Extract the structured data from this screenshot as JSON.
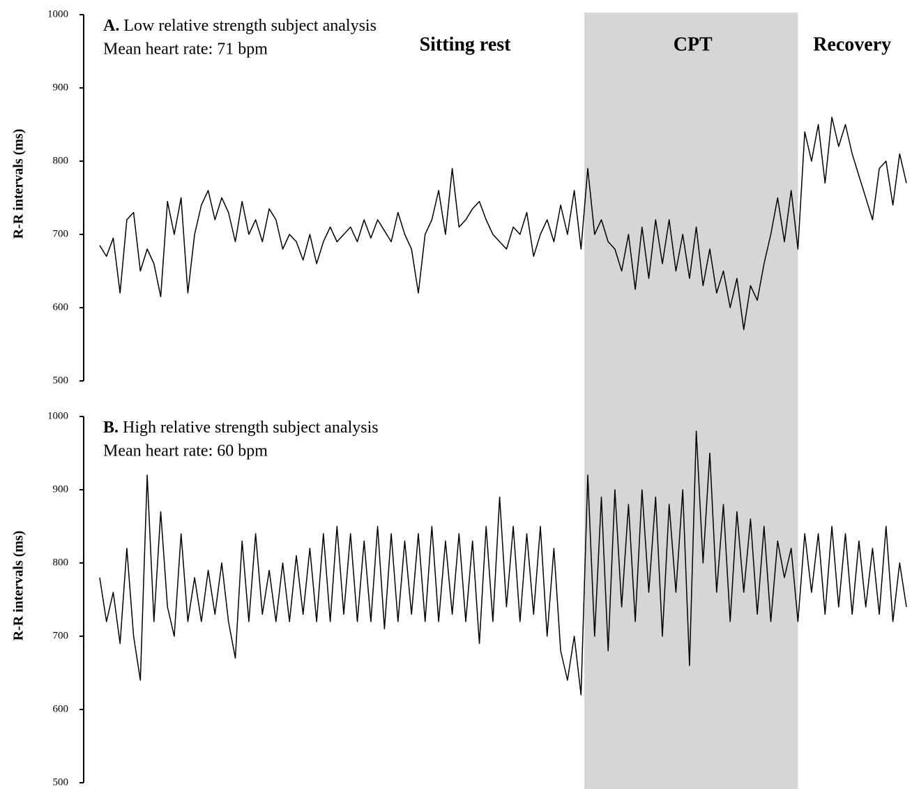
{
  "phases": [
    {
      "label": "Sitting rest",
      "start": 0,
      "end": 72,
      "shaded": false
    },
    {
      "label": "CPT",
      "start": 72,
      "end": 103,
      "shaded": true
    },
    {
      "label": "Recovery",
      "start": 103,
      "end": 119,
      "shaded": false
    }
  ],
  "chart_data": [
    {
      "type": "line",
      "panel_label": "A.",
      "title": "Low relative strength subject analysis",
      "subtitle": "Mean heart rate: 71 bpm",
      "ylabel": "R-R intervals (ms)",
      "ylim": [
        500,
        1000
      ],
      "yticks": [
        500,
        600,
        700,
        800,
        900,
        1000
      ],
      "color": "#000000",
      "grid": false,
      "values": [
        685,
        670,
        695,
        620,
        720,
        730,
        650,
        680,
        660,
        615,
        745,
        700,
        750,
        620,
        700,
        740,
        760,
        720,
        750,
        730,
        690,
        745,
        700,
        720,
        690,
        735,
        720,
        680,
        700,
        690,
        665,
        700,
        660,
        690,
        710,
        690,
        700,
        710,
        690,
        720,
        695,
        720,
        705,
        690,
        730,
        700,
        680,
        620,
        700,
        720,
        760,
        700,
        790,
        710,
        720,
        735,
        745,
        720,
        700,
        690,
        680,
        710,
        700,
        730,
        670,
        700,
        720,
        690,
        740,
        700,
        760,
        680,
        790,
        700,
        720,
        690,
        680,
        650,
        700,
        625,
        710,
        640,
        720,
        660,
        720,
        650,
        700,
        640,
        710,
        630,
        680,
        620,
        650,
        600,
        640,
        570,
        630,
        610,
        660,
        700,
        750,
        690,
        760,
        680,
        840,
        800,
        850,
        770,
        860,
        820,
        850,
        810,
        780,
        750,
        720,
        790,
        800,
        740,
        810,
        770
      ]
    },
    {
      "type": "line",
      "panel_label": "B.",
      "title": "High relative strength subject analysis",
      "subtitle": "Mean heart rate: 60 bpm",
      "ylabel": "R-R intervals (ms)",
      "ylim": [
        500,
        1000
      ],
      "yticks": [
        500,
        600,
        700,
        800,
        900,
        1000
      ],
      "color": "#000000",
      "grid": false,
      "values": [
        780,
        720,
        760,
        690,
        820,
        700,
        640,
        920,
        720,
        870,
        740,
        700,
        840,
        720,
        780,
        720,
        790,
        730,
        800,
        720,
        670,
        830,
        720,
        840,
        730,
        790,
        720,
        800,
        720,
        810,
        730,
        820,
        720,
        840,
        720,
        850,
        730,
        840,
        720,
        830,
        720,
        850,
        710,
        840,
        720,
        830,
        730,
        840,
        720,
        850,
        720,
        830,
        730,
        840,
        720,
        830,
        690,
        850,
        720,
        890,
        740,
        850,
        720,
        840,
        730,
        850,
        700,
        820,
        680,
        640,
        700,
        620,
        920,
        700,
        890,
        680,
        900,
        740,
        880,
        720,
        900,
        760,
        890,
        700,
        880,
        760,
        900,
        660,
        980,
        800,
        950,
        760,
        880,
        720,
        870,
        760,
        860,
        730,
        850,
        720,
        830,
        780,
        820,
        720,
        840,
        760,
        840,
        730,
        850,
        740,
        840,
        730,
        830,
        740,
        820,
        730,
        850,
        720,
        800,
        740
      ]
    }
  ]
}
